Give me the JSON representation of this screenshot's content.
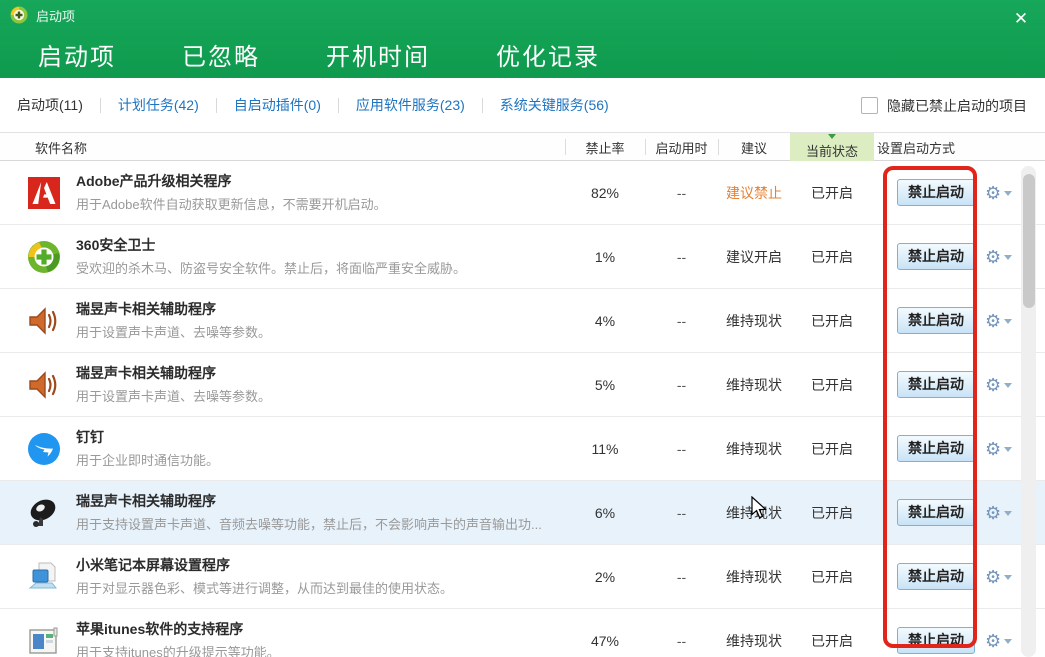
{
  "window": {
    "title": "启动项",
    "close_glyph": "✕"
  },
  "tabs": [
    {
      "label": "启动项",
      "active": true
    },
    {
      "label": "已忽略",
      "active": false
    },
    {
      "label": "开机时间",
      "active": false
    },
    {
      "label": "优化记录",
      "active": false
    }
  ],
  "subtabs": [
    {
      "label": "启动项(11)",
      "active": true
    },
    {
      "label": "计划任务(42)",
      "active": false
    },
    {
      "label": "自启动插件(0)",
      "active": false
    },
    {
      "label": "应用软件服务(23)",
      "active": false
    },
    {
      "label": "系统关键服务(56)",
      "active": false
    }
  ],
  "hide_checkbox": {
    "label": "隐藏已禁止启动的项目",
    "checked": false
  },
  "table": {
    "columns": [
      "软件名称",
      "禁止率",
      "启动用时",
      "建议",
      "当前状态",
      "设置启动方式"
    ],
    "action_label": "禁止启动",
    "gear_glyph": "⚙",
    "rows": [
      {
        "icon": "adobe-icon",
        "name": "Adobe产品升级相关程序",
        "description": "用于Adobe软件自动获取更新信息，不需要开机启动。",
        "forbid_rate": "82%",
        "boot_time": "--",
        "suggestion": "建议禁止",
        "suggestion_type": "disable",
        "status": "已开启",
        "highlighted": false
      },
      {
        "icon": "360-icon",
        "name": "360安全卫士",
        "description": "受欢迎的杀木马、防盗号安全软件。禁止后，将面临严重安全威胁。",
        "forbid_rate": "1%",
        "boot_time": "--",
        "suggestion": "建议开启",
        "suggestion_type": "enable",
        "status": "已开启",
        "highlighted": false
      },
      {
        "icon": "speaker-icon",
        "name": "瑞昱声卡相关辅助程序",
        "description": "用于设置声卡声道、去噪等参数。",
        "forbid_rate": "4%",
        "boot_time": "--",
        "suggestion": "维持现状",
        "suggestion_type": "keep",
        "status": "已开启",
        "highlighted": false
      },
      {
        "icon": "speaker-icon",
        "name": "瑞昱声卡相关辅助程序",
        "description": "用于设置声卡声道、去噪等参数。",
        "forbid_rate": "5%",
        "boot_time": "--",
        "suggestion": "维持现状",
        "suggestion_type": "keep",
        "status": "已开启",
        "highlighted": false
      },
      {
        "icon": "dingtalk-icon",
        "name": "钉钉",
        "description": "用于企业即时通信功能。",
        "forbid_rate": "11%",
        "boot_time": "--",
        "suggestion": "维持现状",
        "suggestion_type": "keep",
        "status": "已开启",
        "highlighted": false
      },
      {
        "icon": "satellite-icon",
        "name": "瑞昱声卡相关辅助程序",
        "description": "用于支持设置声卡声道、音频去噪等功能，禁止后，不会影响声卡的声音输出功...",
        "forbid_rate": "6%",
        "boot_time": "--",
        "suggestion": "维持现状",
        "suggestion_type": "keep",
        "status": "已开启",
        "highlighted": true
      },
      {
        "icon": "laptop-icon",
        "name": "小米笔记本屏幕设置程序",
        "description": "用于对显示器色彩、模式等进行调整，从而达到最佳的使用状态。",
        "forbid_rate": "2%",
        "boot_time": "--",
        "suggestion": "维持现状",
        "suggestion_type": "keep",
        "status": "已开启",
        "highlighted": false
      },
      {
        "icon": "itunes-window-icon",
        "name": "苹果itunes软件的支持程序",
        "description": "用于支持itunes的升级提示等功能。",
        "forbid_rate": "47%",
        "boot_time": "--",
        "suggestion": "维持现状",
        "suggestion_type": "keep",
        "status": "已开启",
        "highlighted": false
      }
    ]
  },
  "colors": {
    "header_green": "#12A053",
    "subtab_blue": "#1E74C0",
    "suggestion_orange": "#E8802F",
    "status_header_bg": "#DCEDC2",
    "annotation_red": "#E1251B",
    "button_border_blue": "#7FB0D8",
    "row_highlight": "#E7F2FB"
  }
}
